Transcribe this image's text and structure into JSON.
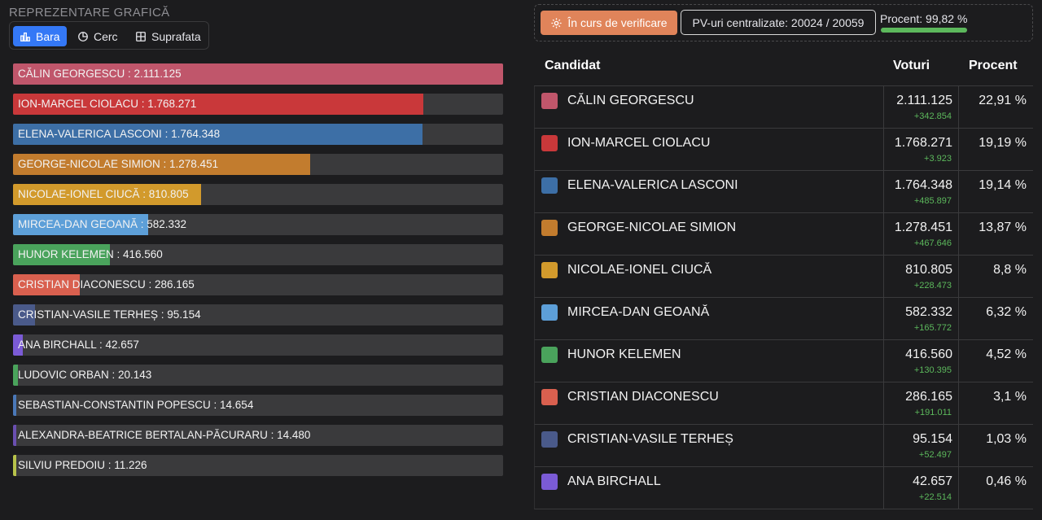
{
  "left_panel": {
    "title": "REPREZENTARE GRAFICĂ",
    "tabs": [
      {
        "label": "Bara",
        "icon": "bar-chart-icon",
        "active": true
      },
      {
        "label": "Cerc",
        "icon": "pie-chart-icon",
        "active": false
      },
      {
        "label": "Suprafata",
        "icon": "treemap-icon",
        "active": false
      }
    ]
  },
  "chart_data": {
    "type": "bar",
    "orientation": "horizontal",
    "max": 2111125,
    "bars": [
      {
        "label": "CĂLIN GEORGESCU : 2.111.125",
        "value": 2111125,
        "color": "#c0566b"
      },
      {
        "label": "ION-MARCEL CIOLACU : 1.768.271",
        "value": 1768271,
        "color": "#c9383a"
      },
      {
        "label": "ELENA-VALERICA LASCONI : 1.764.348",
        "value": 1764348,
        "color": "#3d6fa6"
      },
      {
        "label": "GEORGE-NICOLAE SIMION : 1.278.451",
        "value": 1278451,
        "color": "#c27c2e"
      },
      {
        "label": "NICOLAE-IONEL CIUCĂ : 810.805",
        "value": 810805,
        "color": "#d29a2c"
      },
      {
        "label": "MIRCEA-DAN GEOANĂ : 582.332",
        "value": 582332,
        "color": "#5d9fd8"
      },
      {
        "label": "HUNOR KELEMEN : 416.560",
        "value": 416560,
        "color": "#4aa35c"
      },
      {
        "label": "CRISTIAN DIACONESCU : 286.165",
        "value": 286165,
        "color": "#d9604f"
      },
      {
        "label": "CRISTIAN-VASILE TERHEȘ : 95.154",
        "value": 95154,
        "color": "#4a5a8a"
      },
      {
        "label": "ANA BIRCHALL : 42.657",
        "value": 42657,
        "color": "#7b5bd6"
      },
      {
        "label": "LUDOVIC ORBAN : 20.143",
        "value": 20143,
        "color": "#4aa35c"
      },
      {
        "label": "SEBASTIAN-CONSTANTIN POPESCU : 14.654",
        "value": 14654,
        "color": "#4a78b8"
      },
      {
        "label": "ALEXANDRA-BEATRICE BERTALAN-PĂCURARU : 14.480",
        "value": 14480,
        "color": "#6a4fb0"
      },
      {
        "label": "SILVIU PREDOIU : 11.226",
        "value": 11226,
        "color": "#b7c24a"
      }
    ]
  },
  "status": {
    "verif_label": "În curs de verificare",
    "pv_label": "PV-uri centralizate: 20024 / 20059",
    "procent_label": "Procent: 99,82 %",
    "procent_value": 99.82,
    "accent": "#e0845a",
    "progress_color": "#5cb85c"
  },
  "table": {
    "headers": {
      "candidat": "Candidat",
      "voturi": "Voturi",
      "procent": "Procent"
    },
    "rows": [
      {
        "name": "CĂLIN GEORGESCU",
        "votes": "2.111.125",
        "delta": "+342.854",
        "pct": "22,91 %",
        "color": "#c0566b"
      },
      {
        "name": "ION-MARCEL CIOLACU",
        "votes": "1.768.271",
        "delta": "+3.923",
        "pct": "19,19 %",
        "color": "#c9383a"
      },
      {
        "name": "ELENA-VALERICA LASCONI",
        "votes": "1.764.348",
        "delta": "+485.897",
        "pct": "19,14 %",
        "color": "#3d6fa6"
      },
      {
        "name": "GEORGE-NICOLAE SIMION",
        "votes": "1.278.451",
        "delta": "+467.646",
        "pct": "13,87 %",
        "color": "#c27c2e"
      },
      {
        "name": "NICOLAE-IONEL CIUCĂ",
        "votes": "810.805",
        "delta": "+228.473",
        "pct": "8,8 %",
        "color": "#d29a2c"
      },
      {
        "name": "MIRCEA-DAN GEOANĂ",
        "votes": "582.332",
        "delta": "+165.772",
        "pct": "6,32 %",
        "color": "#5d9fd8"
      },
      {
        "name": "HUNOR KELEMEN",
        "votes": "416.560",
        "delta": "+130.395",
        "pct": "4,52 %",
        "color": "#4aa35c"
      },
      {
        "name": "CRISTIAN DIACONESCU",
        "votes": "286.165",
        "delta": "+191.011",
        "pct": "3,1 %",
        "color": "#d9604f"
      },
      {
        "name": "CRISTIAN-VASILE TERHEȘ",
        "votes": "95.154",
        "delta": "+52.497",
        "pct": "1,03 %",
        "color": "#4a5a8a"
      },
      {
        "name": "ANA BIRCHALL",
        "votes": "42.657",
        "delta": "+22.514",
        "pct": "0,46 %",
        "color": "#7b5bd6"
      }
    ]
  }
}
